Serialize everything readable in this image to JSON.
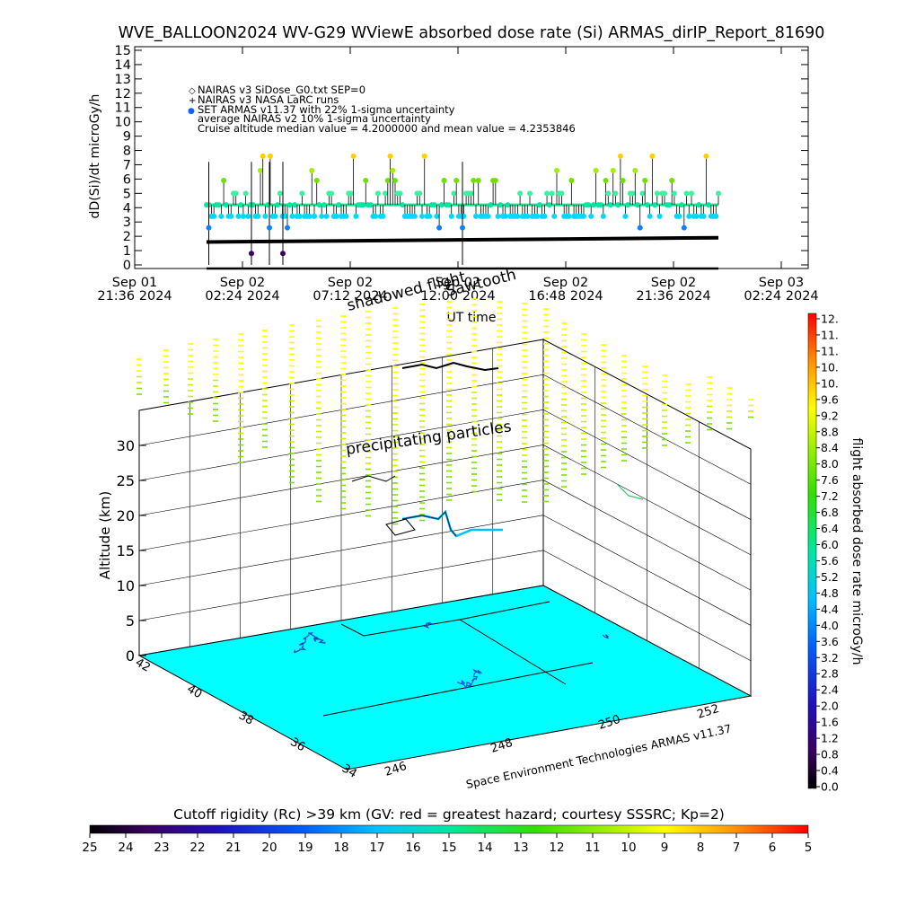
{
  "title": "WVE_BALLOON2024 WV-G29 WViewE absorbed dose rate (Si) ARMAS_dirIP_Report_81690",
  "chart_data": [
    {
      "type": "line",
      "panel": "time-series",
      "ylabel": "dD(Si)/dt microGy/h",
      "xlabel": "UT time",
      "ylim": [
        0,
        15
      ],
      "yticks": [
        0,
        1,
        2,
        3,
        4,
        5,
        6,
        7,
        8,
        9,
        10,
        11,
        12,
        13,
        14,
        15
      ],
      "xticks": [
        {
          "line1": "Sep 01",
          "line2": "21:36 2024",
          "h": 0.0
        },
        {
          "line1": "Sep 02",
          "line2": "02:24 2024",
          "h": 4.8
        },
        {
          "line1": "Sep 02",
          "line2": "07:12 2024",
          "h": 9.6
        },
        {
          "line1": "Sep 02",
          "line2": "12:00 2024",
          "h": 14.4
        },
        {
          "line1": "Sep 02",
          "line2": "16:48 2024",
          "h": 19.2
        },
        {
          "line1": "Sep 02",
          "line2": "21:36 2024",
          "h": 24.0
        },
        {
          "line1": "Sep 03",
          "line2": "02:24 2024",
          "h": 28.8
        }
      ],
      "legend": [
        {
          "marker": "◇",
          "label": "NAIRAS v3 SiDose_G0.txt SEP=0"
        },
        {
          "marker": "+",
          "label": "NAIRAS v3 NASA LaRC runs"
        },
        {
          "marker": "●",
          "label": "SET ARMAS v11.37 with 22% 1-sigma uncertainty"
        },
        {
          "marker": "",
          "label": "average NAIRAS v2 10% 1-sigma uncertainty"
        },
        {
          "marker": "",
          "label": "Cruise altitude median value = 4.2000000 and mean value = 4.2353846"
        }
      ],
      "overlay_labels": [
        "shadowed flight",
        "Sawtooth"
      ],
      "series": [
        {
          "name": "NAIRAS v3 NASA LaRC runs",
          "start_h": 3.2,
          "end_h": 26.0,
          "start_value": 1.6,
          "end_value": 1.9
        },
        {
          "name": "NAIRAS v3 SiDose_G0.txt SEP=0",
          "start_h": 3.2,
          "end_h": 26.0,
          "value": 0.0
        },
        {
          "name": "SET ARMAS v11.37 with 22% 1-sigma uncertainty",
          "start_h": 3.2,
          "end_h": 26.0,
          "median": 4.2,
          "mean": 4.2353846,
          "min": 0.5,
          "max": 7.6
        }
      ]
    },
    {
      "type": "scatter",
      "panel": "3d-trajectory",
      "zlabel": "Altitude (km)",
      "zlim": [
        0,
        35
      ],
      "zticks": [
        0,
        5,
        10,
        15,
        20,
        25,
        30
      ],
      "lat_ticks": [
        "42",
        "40",
        "38",
        "36",
        "34"
      ],
      "lon_ticks": [
        "246",
        "248",
        "250",
        "252"
      ],
      "labels": [
        "precipitating particles"
      ],
      "footer": "Space Environment Technologies ARMAS v11.37",
      "colorbar": {
        "label": "flight absorbed dose rate microGy/h",
        "range": [
          0.0,
          12.0
        ],
        "ticks": [
          "12.",
          "11.",
          "11.",
          "10.",
          "10.",
          "9.6",
          "9.2",
          "8.8",
          "8.4",
          "8.0",
          "7.6",
          "7.2",
          "6.8",
          "6.4",
          "6.0",
          "5.6",
          "5.2",
          "4.8",
          "4.4",
          "4.0",
          "3.6",
          "3.2",
          "2.8",
          "2.4",
          "2.0",
          "1.6",
          "1.2",
          "0.8",
          "0.4",
          "0.0"
        ]
      },
      "rigidity_bar": {
        "title": "Cutoff rigidity (Rc) >39 km (GV: red = greatest hazard; courtesy SSSRC; Kp=2)",
        "ticks": [
          25,
          24,
          23,
          22,
          21,
          20,
          19,
          18,
          17,
          16,
          15,
          14,
          13,
          12,
          11,
          10,
          9,
          8,
          7,
          6,
          5
        ]
      },
      "colors": {
        "ground": "#00ffff",
        "particles_high": "#ffff00",
        "particles_mid": "#a0f000"
      }
    }
  ]
}
